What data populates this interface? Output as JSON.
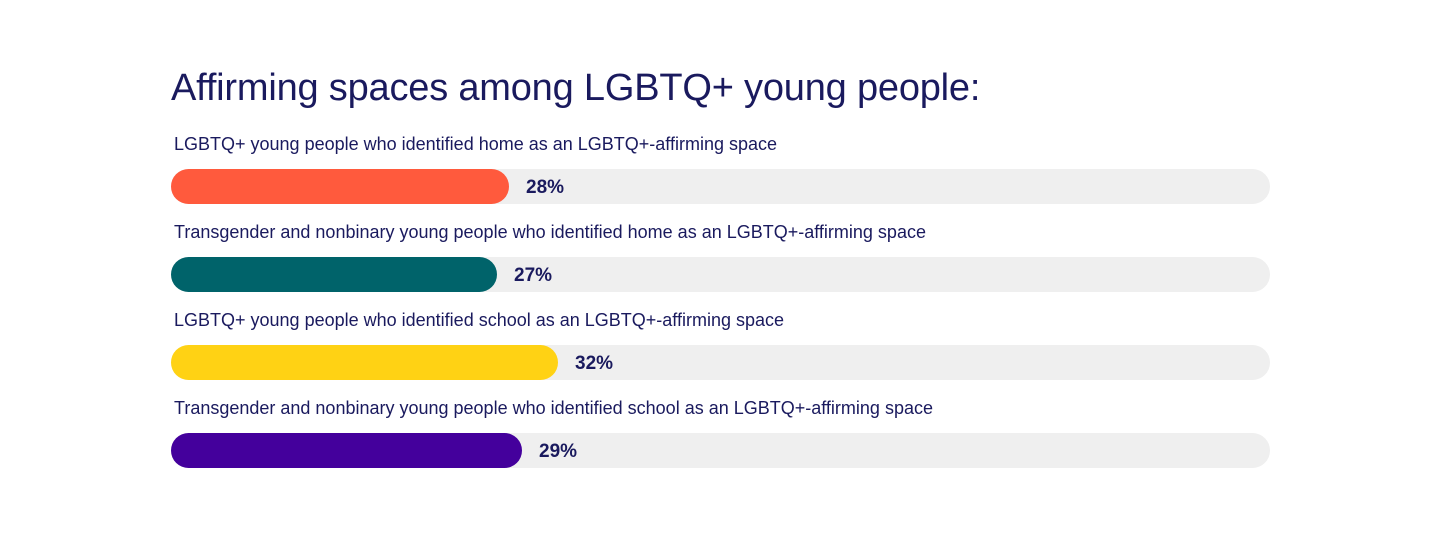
{
  "chart_data": {
    "type": "bar",
    "orientation": "horizontal",
    "title": "Affirming spaces among LGBTQ+ young people:",
    "xlim": [
      0,
      100
    ],
    "unit": "%",
    "grid": false,
    "bars": [
      {
        "label": "LGBTQ+ young people who identified home as an LGBTQ+-affirming space",
        "value": 28,
        "value_label": "28%",
        "color": "#FF5A3D"
      },
      {
        "label": "Transgender and nonbinary young people who identified home as an LGBTQ+-affirming space",
        "value": 27,
        "value_label": "27%",
        "color": "#00636A"
      },
      {
        "label": "LGBTQ+ young people who identified school as an LGBTQ+-affirming space",
        "value": 32,
        "value_label": "32%",
        "color": "#FFD214"
      },
      {
        "label": "Transgender and nonbinary young people who identified school as an LGBTQ+-affirming space",
        "value": 29,
        "value_label": "29%",
        "color": "#44009C"
      }
    ],
    "track_color": "#EFEFEF",
    "text_color": "#1A1A5E"
  }
}
